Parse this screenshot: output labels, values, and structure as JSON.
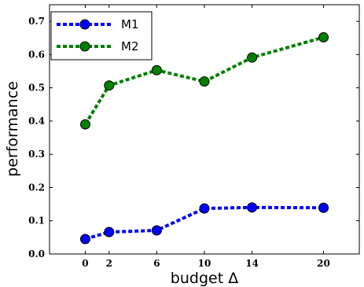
{
  "chart_data": {
    "type": "line",
    "xlabel": "budget Δ",
    "ylabel": "performance",
    "x": [
      0,
      2,
      6,
      10,
      14,
      20
    ],
    "xticks": [
      "0",
      "2",
      "6",
      "10",
      "14",
      "20"
    ],
    "yticks": [
      "0.0",
      "0.1",
      "0.2",
      "0.3",
      "0.4",
      "0.5",
      "0.6",
      "0.7"
    ],
    "xlim": [
      -3,
      23
    ],
    "ylim": [
      0,
      0.75
    ],
    "grid": false,
    "legend_position": "top-left",
    "series": [
      {
        "name": "M1",
        "color": "#0000ff",
        "values": [
          0.045,
          0.066,
          0.071,
          0.137,
          0.14,
          0.139
        ]
      },
      {
        "name": "M2",
        "color": "#007f00",
        "values": [
          0.39,
          0.507,
          0.553,
          0.519,
          0.591,
          0.652
        ]
      }
    ]
  }
}
